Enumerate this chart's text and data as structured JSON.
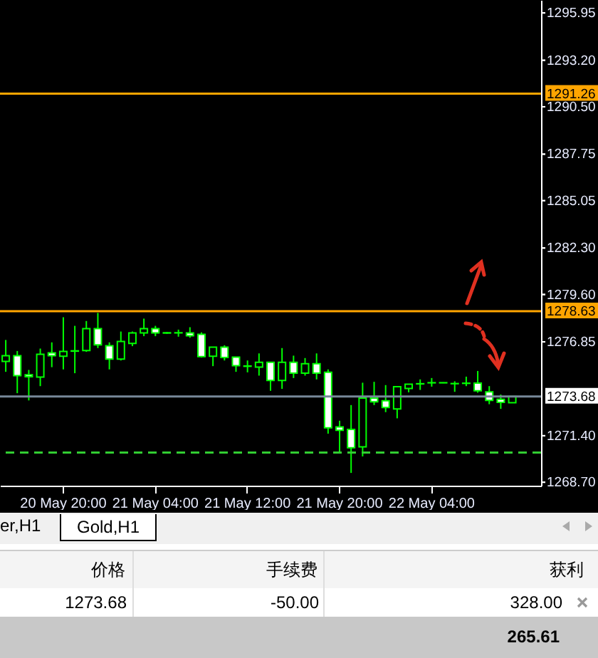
{
  "chart_data": {
    "type": "candlestick",
    "categories": [
      null,
      null,
      null,
      null,
      null,
      "20 May 20:00",
      null,
      null,
      null,
      null,
      null,
      null,
      null,
      "21 May 04:00",
      null,
      null,
      null,
      null,
      null,
      null,
      null,
      "21 May 12:00",
      null,
      null,
      null,
      null,
      null,
      null,
      null,
      "21 May 20:00",
      null,
      null,
      null,
      null,
      null,
      null,
      null,
      "22 May 04:00",
      null,
      null,
      null,
      null,
      null,
      null,
      null
    ],
    "ohlc": [
      [
        1275.72,
        1276.96,
        1275.11,
        1276.05
      ],
      [
        1276.05,
        1276.32,
        1273.87,
        1274.89
      ],
      [
        1274.94,
        1275.22,
        1273.45,
        1274.83
      ],
      [
        1274.81,
        1276.46,
        1274.28,
        1276.13
      ],
      [
        1276.21,
        1276.82,
        1275.38,
        1276.05
      ],
      [
        1276.02,
        1278.28,
        1275.25,
        1276.29
      ],
      [
        1276.31,
        1277.78,
        1275.03,
        1276.33
      ],
      [
        1276.35,
        1278.06,
        1276.27,
        1277.62
      ],
      [
        1277.62,
        1278.53,
        1276.49,
        1276.68
      ],
      [
        1276.63,
        1276.82,
        1275.25,
        1275.85
      ],
      [
        1275.85,
        1277.45,
        1275.77,
        1276.87
      ],
      [
        1276.76,
        1277.45,
        1276.6,
        1277.37
      ],
      [
        1277.37,
        1278.2,
        1277.18,
        1277.62
      ],
      [
        1277.62,
        1277.78,
        1277.18,
        1277.37
      ],
      [
        1277.38,
        1277.42,
        1277.32,
        1277.36
      ],
      [
        1277.37,
        1277.56,
        1277.15,
        1277.38
      ],
      [
        1277.37,
        1277.7,
        1277.09,
        1277.2
      ],
      [
        1277.29,
        1277.4,
        1275.94,
        1275.99
      ],
      [
        1276.02,
        1276.54,
        1275.44,
        1276.54
      ],
      [
        1276.54,
        1276.65,
        1275.77,
        1275.94
      ],
      [
        1275.96,
        1275.96,
        1275.11,
        1275.47
      ],
      [
        1275.45,
        1275.77,
        1275.08,
        1275.43
      ],
      [
        1275.38,
        1276.18,
        1274.89,
        1275.66
      ],
      [
        1275.66,
        1275.66,
        1274.01,
        1274.61
      ],
      [
        1274.61,
        1276.49,
        1274.12,
        1275.66
      ],
      [
        1275.66,
        1276.05,
        1274.75,
        1275.03
      ],
      [
        1275.03,
        1275.91,
        1274.89,
        1275.58
      ],
      [
        1275.58,
        1276.18,
        1274.67,
        1275.03
      ],
      [
        1275.08,
        1275.25,
        1271.52,
        1271.86
      ],
      [
        1271.91,
        1272.27,
        1270.42,
        1271.72
      ],
      [
        1271.77,
        1273.18,
        1269.24,
        1270.7
      ],
      [
        1270.75,
        1274.48,
        1270.2,
        1273.59
      ],
      [
        1273.59,
        1274.53,
        1273.18,
        1273.37
      ],
      [
        1273.43,
        1274.34,
        1272.77,
        1273.04
      ],
      [
        1272.96,
        1274.25,
        1272.41,
        1274.25
      ],
      [
        1274.14,
        1274.39,
        1273.92,
        1274.39
      ],
      [
        1274.41,
        1274.67,
        1274.06,
        1274.42
      ],
      [
        1274.47,
        1274.75,
        1274.25,
        1274.48
      ],
      [
        1274.48,
        1274.5,
        1274.45,
        1274.47
      ],
      [
        1274.42,
        1274.56,
        1273.95,
        1274.43
      ],
      [
        1274.44,
        1274.83,
        1274.28,
        1274.45
      ],
      [
        1274.45,
        1275.16,
        1273.9,
        1274.01
      ],
      [
        1273.95,
        1274.28,
        1273.23,
        1273.45
      ],
      [
        1273.51,
        1273.79,
        1272.96,
        1273.34
      ],
      [
        1273.32,
        1273.68,
        1273.32,
        1273.68
      ]
    ],
    "ylim": [
      1268.5,
      1296.7
    ],
    "yticks": [
      {
        "value": 1268.7,
        "label": "1268.70"
      },
      {
        "value": 1271.4,
        "label": "1271.40"
      },
      1276.85,
      {
        "value": 1279.6,
        "label": "1279.60"
      },
      {
        "value": 1282.3,
        "label": "1282.30"
      },
      1285.05,
      1287.75,
      {
        "value": 1290.5,
        "label": "1290.50"
      },
      {
        "value": 1293.2,
        "label": "1293.20"
      },
      1295.95
    ],
    "grid": false,
    "ref_lines": [
      {
        "axis": "y",
        "value": 1291.26,
        "label": "1291.26",
        "color": "#ffa500"
      },
      {
        "axis": "y",
        "value": 1278.63,
        "label": "1278.63",
        "color": "#ffa500"
      },
      {
        "axis": "y",
        "value": 1273.68,
        "label": "1273.68",
        "color": "#778899"
      },
      {
        "axis": "y",
        "value": 1270.42,
        "color": "#32cd32",
        "line_style": "dashed"
      }
    ],
    "annotations": [
      "er,H1",
      "Gold,H1",
      "价格",
      "手续费",
      "获利",
      "1273.68",
      "-50.00",
      "328.00",
      "265.61"
    ]
  }
}
